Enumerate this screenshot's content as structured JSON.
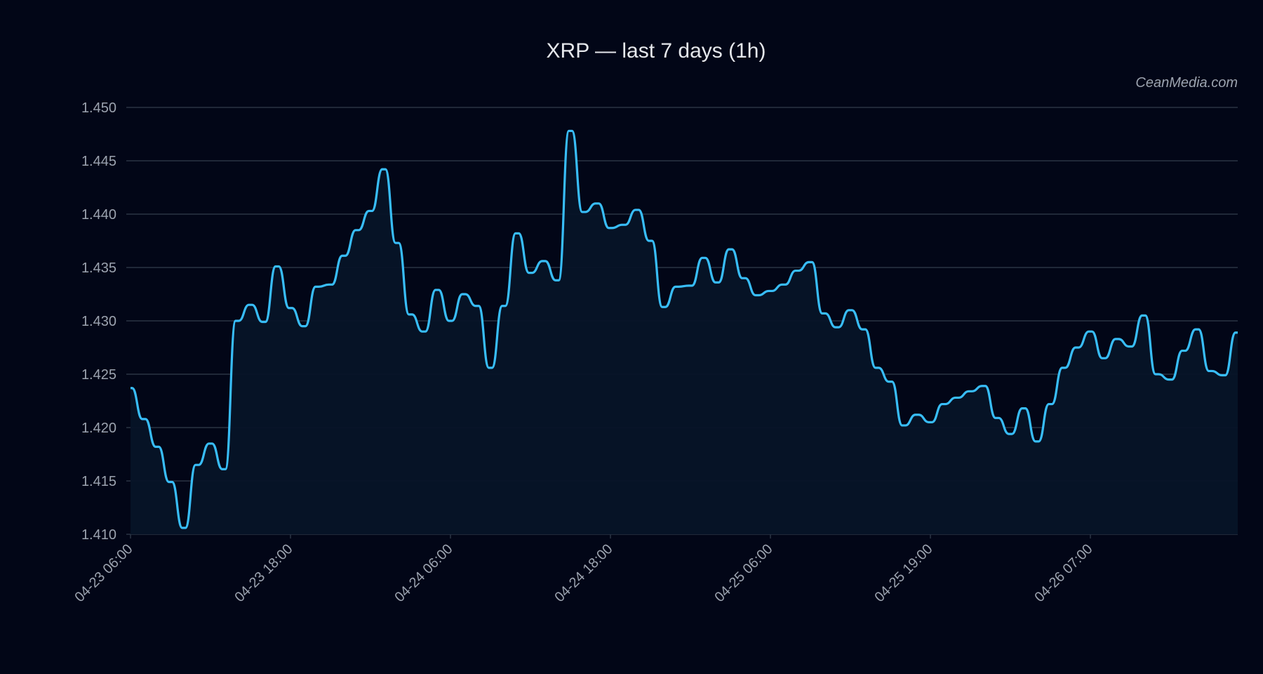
{
  "chart_data": {
    "type": "area",
    "title": "XRP — last 7 days (1h)",
    "watermark": "CeanMedia.com",
    "xlabel": "",
    "ylabel": "",
    "ylim": [
      1.41,
      1.45
    ],
    "y_ticks": [
      "1.410",
      "1.415",
      "1.420",
      "1.425",
      "1.430",
      "1.435",
      "1.440",
      "1.445",
      "1.450"
    ],
    "x_tick_labels": [
      "04-23 06:00",
      "04-23 18:00",
      "04-24 06:00",
      "04-24 18:00",
      "04-25 06:00",
      "04-25 19:00",
      "04-26 07:00"
    ],
    "grid": true,
    "colors": {
      "background": "#020617",
      "line": "#38bdf8",
      "fill": "#061427",
      "grid": "#2b3444",
      "text": "#9ca3af"
    },
    "values": [
      1.4237,
      1.4208,
      1.4182,
      1.4149,
      1.4106,
      1.4165,
      1.4185,
      1.4161,
      1.43,
      1.4315,
      1.4299,
      1.4351,
      1.4312,
      1.4295,
      1.4332,
      1.4334,
      1.4361,
      1.4385,
      1.4403,
      1.4442,
      1.4373,
      1.4306,
      1.429,
      1.4329,
      1.43,
      1.4325,
      1.4314,
      1.4256,
      1.4314,
      1.4382,
      1.4345,
      1.4356,
      1.4338,
      1.4478,
      1.4402,
      1.441,
      1.4387,
      1.439,
      1.4404,
      1.4375,
      1.4313,
      1.4332,
      1.4333,
      1.4359,
      1.4336,
      1.4367,
      1.434,
      1.4324,
      1.4328,
      1.4334,
      1.4347,
      1.4355,
      1.4307,
      1.4294,
      1.431,
      1.4292,
      1.4256,
      1.4243,
      1.4202,
      1.4212,
      1.4205,
      1.4222,
      1.4228,
      1.4234,
      1.4239,
      1.4209,
      1.4194,
      1.4218,
      1.4187,
      1.4222,
      1.4256,
      1.4275,
      1.429,
      1.4265,
      1.4283,
      1.4276,
      1.4305,
      1.425,
      1.4245,
      1.4272,
      1.4292,
      1.4253,
      1.4249,
      1.4289
    ]
  }
}
